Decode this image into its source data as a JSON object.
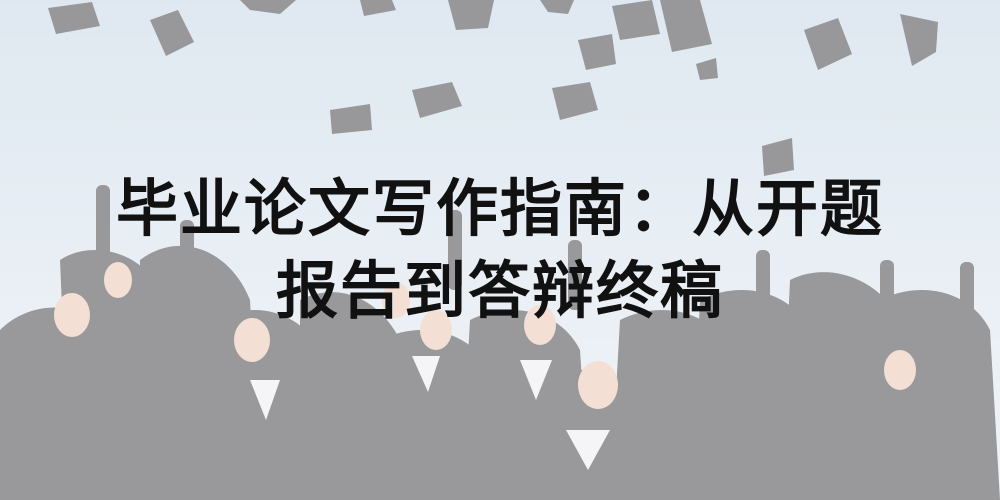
{
  "banner": {
    "title_line_1": "毕业论文写作指南：从开题",
    "title_line_2": "报告到答辩终稿"
  },
  "colors": {
    "sky": "#cfdbe6",
    "gown": "#1e1e22",
    "title_text": "#111111"
  },
  "photo": {
    "icon": "graduation-photo"
  }
}
